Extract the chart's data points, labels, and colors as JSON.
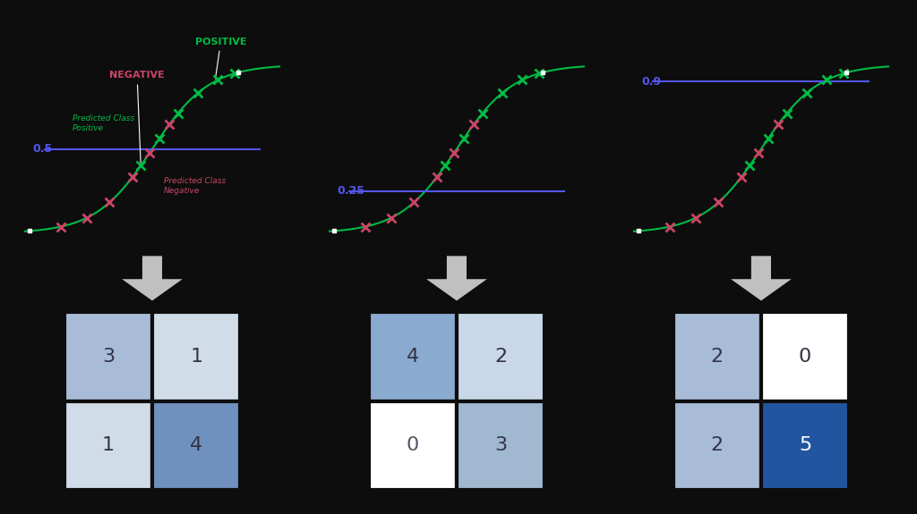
{
  "background_color": "#0d0d0d",
  "thresholds": [
    0.5,
    0.25,
    0.9
  ],
  "threshold_labels": [
    "0.5",
    "0.25",
    "0.9"
  ],
  "threshold_color": "#5555ee",
  "sigmoid_color": "#00bb44",
  "positive_marker_color": "#00bb44",
  "negative_marker_color": "#cc4466",
  "arrow_color": "#bbbbbb",
  "confusion_matrices": [
    [
      [
        3,
        1
      ],
      [
        1,
        4
      ]
    ],
    [
      [
        4,
        2
      ],
      [
        0,
        3
      ]
    ],
    [
      [
        2,
        0
      ],
      [
        2,
        5
      ]
    ]
  ],
  "cm_cell_colors": [
    [
      [
        "#a8bcd8",
        "#d0dce8"
      ],
      [
        "#d0dce8",
        "#7090c0"
      ]
    ],
    [
      [
        "#8aaad0",
        "#c8d8e8"
      ],
      [
        "#ffffff",
        "#a0b8d0"
      ]
    ],
    [
      [
        "#a8bcd8",
        "#ffffff"
      ],
      [
        "#a8bcd8",
        "#2255a0"
      ]
    ]
  ],
  "cm_text_colors": [
    [
      [
        "#333344",
        "#333344"
      ],
      [
        "#333344",
        "#333344"
      ]
    ],
    [
      [
        "#333344",
        "#333344"
      ],
      [
        "#555566",
        "#333344"
      ]
    ],
    [
      [
        "#333344",
        "#333344"
      ],
      [
        "#333344",
        "#ffffff"
      ]
    ]
  ],
  "pos_label_color": "#00bb44",
  "neg_label_color": "#cc4466",
  "pred_pos_color": "#00bb44",
  "pred_neg_color": "#cc4466",
  "label_fontsize": 8,
  "threshold_fontsize": 9,
  "cm_fontsize": 16,
  "green_x_positions": [
    -0.4,
    0.25,
    0.9,
    1.6,
    2.3,
    2.9
  ],
  "pink_x_positions": [
    -3.2,
    -2.3,
    -1.5,
    -0.7,
    -0.1,
    0.6
  ]
}
